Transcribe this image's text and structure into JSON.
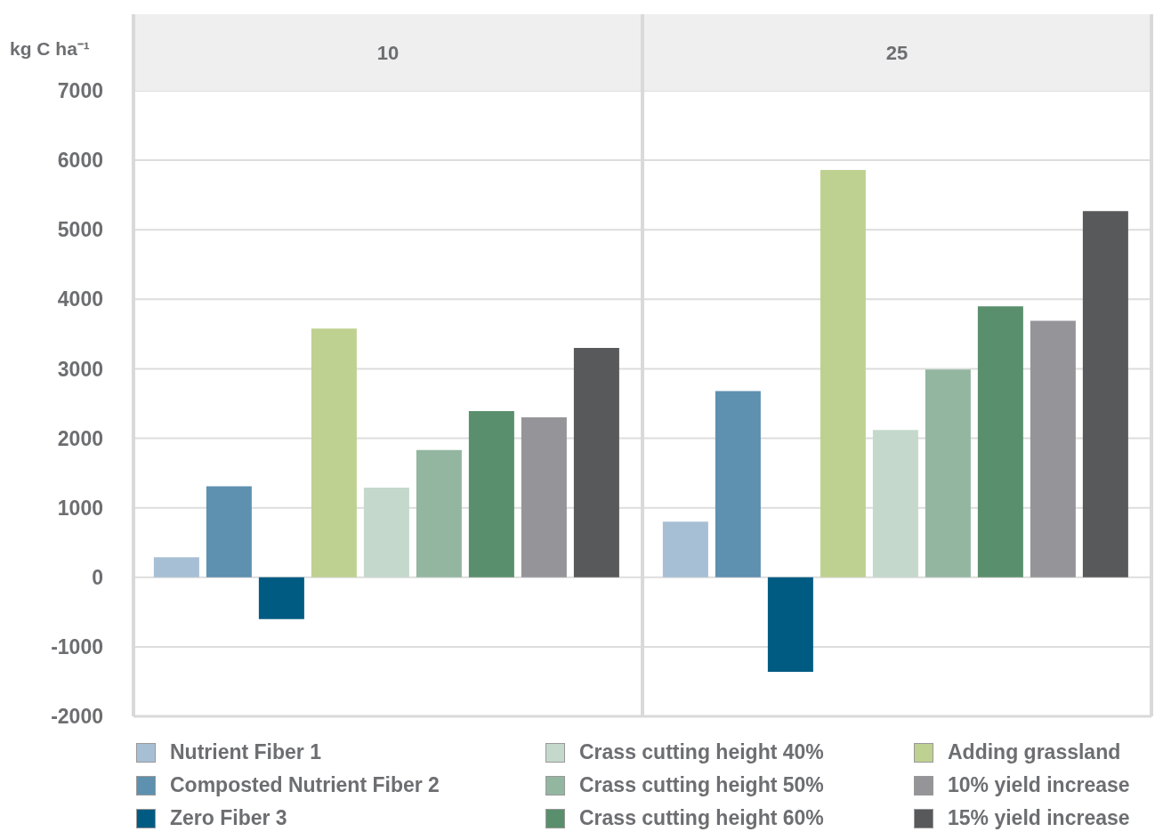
{
  "chart_data": {
    "type": "bar",
    "ylabel": "kg C ha⁻¹",
    "categories": [
      "10",
      "25"
    ],
    "series": [
      {
        "name": "Nutrient Fiber 1",
        "color": "#a7bfd4",
        "values": [
          290,
          800
        ]
      },
      {
        "name": "Composted Nutrient Fiber 2",
        "color": "#5e90b0",
        "values": [
          1310,
          2680
        ]
      },
      {
        "name": "Zero Fiber 3",
        "color": "#005b82",
        "values": [
          -600,
          -1360
        ]
      },
      {
        "name": "Adding grassland",
        "color": "#bfd190",
        "values": [
          3580,
          5860
        ]
      },
      {
        "name": "Crass cutting height 40%",
        "color": "#c5d8cc",
        "values": [
          1290,
          2120
        ]
      },
      {
        "name": "Crass cutting height 50%",
        "color": "#93b6a0",
        "values": [
          1830,
          2990
        ]
      },
      {
        "name": "Crass cutting height 60%",
        "color": "#5a8f6d",
        "values": [
          2390,
          3900
        ]
      },
      {
        "name": "10% yield increase",
        "color": "#959599",
        "values": [
          2300,
          3690
        ]
      },
      {
        "name": "15% yield increase",
        "color": "#58595b",
        "values": [
          3300,
          5270
        ]
      }
    ],
    "ylim": [
      -2000,
      7000
    ],
    "yticks": [
      -2000,
      -1000,
      0,
      1000,
      2000,
      3000,
      4000,
      5000,
      6000,
      7000
    ],
    "grid": "y",
    "legend": "bottom"
  }
}
